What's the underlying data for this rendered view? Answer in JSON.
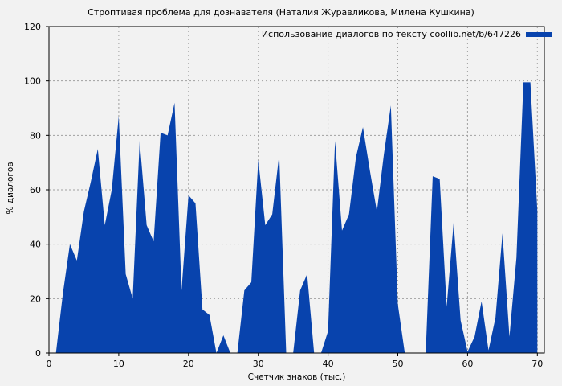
{
  "chart_data": {
    "type": "area",
    "title": "Строптивая проблема для дознавателя (Наталия Журавликова, Милена Кушкина)",
    "xlabel": "Счетчик знаков (тыс.)",
    "ylabel": "% диалогов",
    "xlim": [
      0,
      71
    ],
    "ylim": [
      0,
      120
    ],
    "xticks": [
      0,
      10,
      20,
      30,
      40,
      50,
      60,
      70
    ],
    "yticks": [
      0,
      20,
      40,
      60,
      80,
      100,
      120
    ],
    "grid": true,
    "legend_position": "upper right",
    "series": [
      {
        "name": "Использование диалогов по тексту coollib.net/b/647226",
        "color": "#0843ad",
        "x": [
          0,
          1,
          2,
          3,
          4,
          5,
          6,
          7,
          8,
          9,
          10,
          11,
          12,
          13,
          14,
          15,
          16,
          17,
          18,
          19,
          20,
          21,
          22,
          23,
          24,
          25,
          26,
          27,
          28,
          29,
          30,
          31,
          32,
          33,
          34,
          35,
          36,
          37,
          38,
          39,
          40,
          41,
          42,
          43,
          44,
          45,
          46,
          47,
          48,
          49,
          50,
          51,
          52,
          53,
          54,
          55,
          56,
          57,
          58,
          59,
          60,
          61,
          62,
          63,
          64,
          65,
          66,
          67,
          68,
          69,
          70
        ],
        "values": [
          0,
          0,
          22,
          40,
          34,
          52,
          63,
          75,
          47,
          60,
          87,
          29,
          20,
          78,
          47,
          41,
          81,
          80,
          92,
          23,
          58,
          55,
          16,
          14,
          0,
          6.5,
          0,
          0,
          23,
          26,
          71,
          47,
          51,
          73,
          0,
          0,
          23,
          29,
          0,
          0,
          8,
          78,
          45,
          51,
          72,
          83,
          67,
          52,
          73,
          91,
          18,
          0,
          0,
          0,
          0,
          65,
          64,
          17,
          48,
          12,
          0.5,
          6,
          19,
          1,
          13,
          44,
          6,
          35,
          99.5,
          99.5,
          52
        ]
      }
    ]
  }
}
